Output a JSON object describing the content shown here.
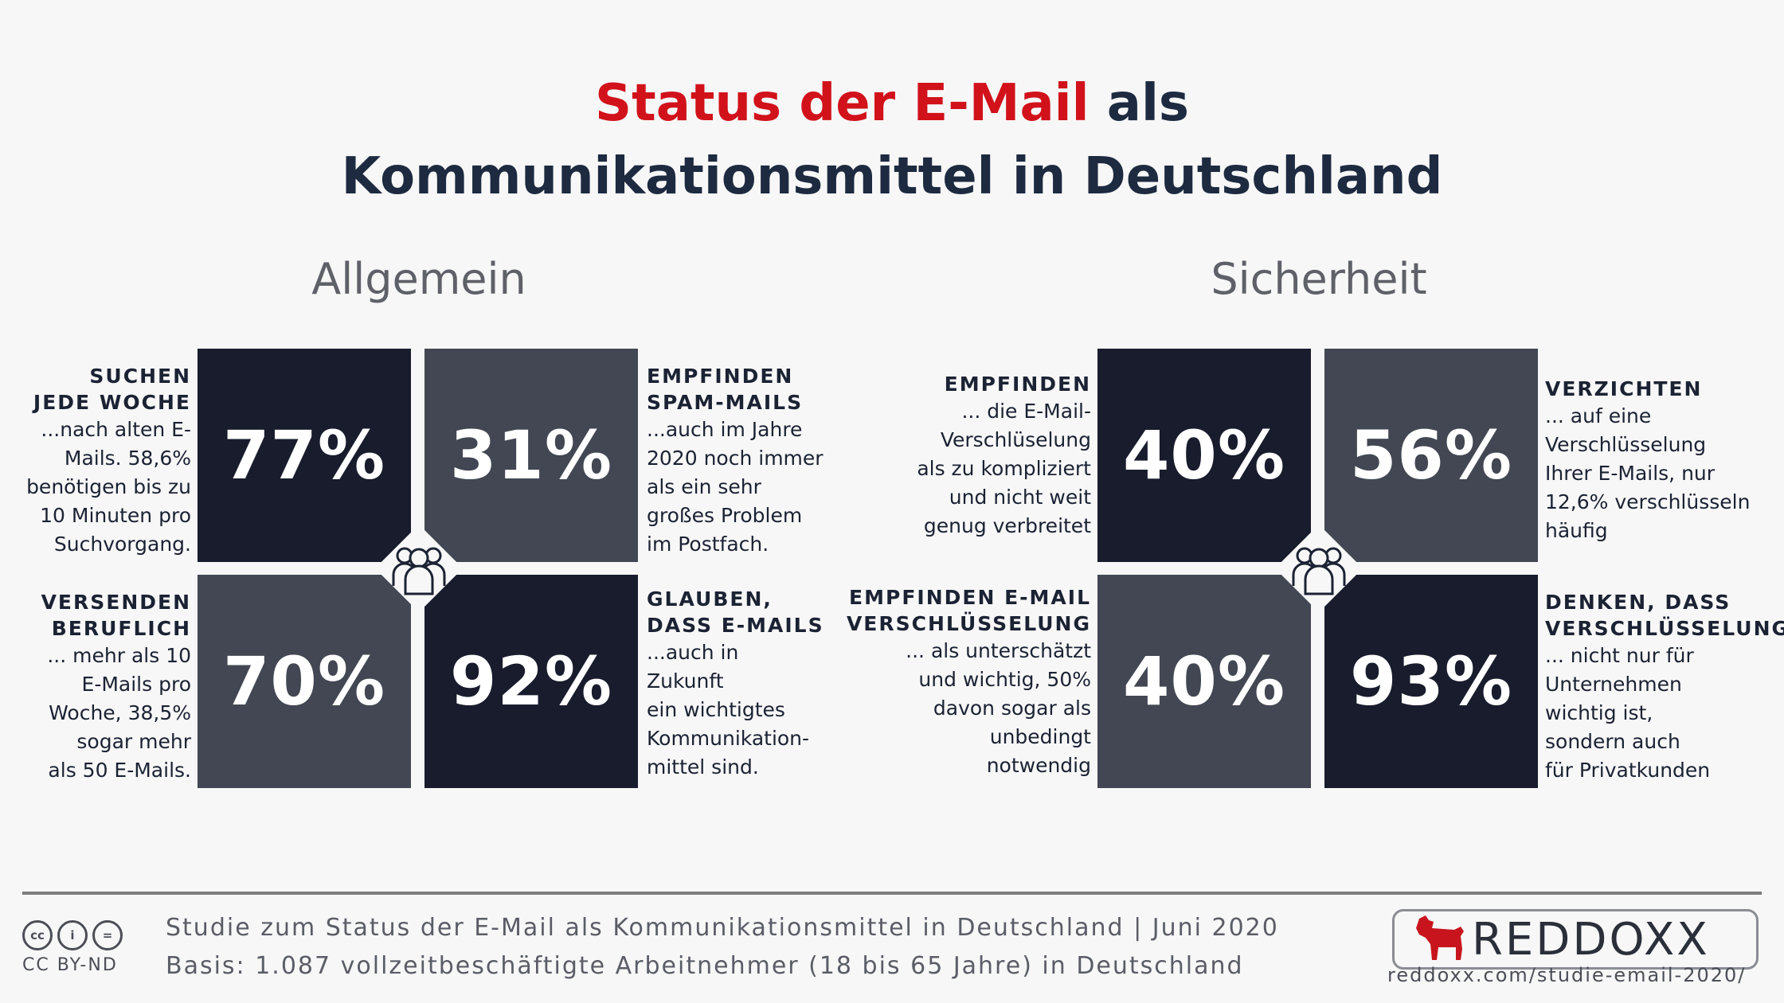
{
  "title": {
    "red_part": "Status der E-Mail",
    "dark_part": " als",
    "line2": "Kommunikationsmittel in Deutschland"
  },
  "sections": {
    "general": {
      "title": "Allgemein",
      "items": [
        {
          "value": "77%",
          "head": "SUCHEN\nJEDE WOCHE",
          "body": "...nach alten E-\nMails. 58,6%\nbenötigen bis zu\n10 Minuten pro\nSuchvorgang."
        },
        {
          "value": "31%",
          "head": "EMPFINDEN\nSPAM-MAILS",
          "body": "...auch im Jahre\n2020 noch immer\nals ein sehr\ngroßes Problem\nim Postfach."
        },
        {
          "value": "70%",
          "head": "VERSENDEN\nBERUFLICH",
          "body": "... mehr als 10\nE-Mails pro\nWoche, 38,5%\nsogar mehr\nals 50 E-Mails."
        },
        {
          "value": "92%",
          "head": "GLAUBEN,\nDASS E-MAILS",
          "body": "...auch in\nZukunft\nein wichtigtes\nKommunikation-\nmittel sind."
        }
      ]
    },
    "security": {
      "title": "Sicherheit",
      "items": [
        {
          "value": "40%",
          "head": "EMPFINDEN",
          "body": "... die E-Mail-\nVerschlüselung\nals zu kompliziert\nund nicht weit\ngenug verbreitet"
        },
        {
          "value": "56%",
          "head": "VERZICHTEN",
          "body": "... auf eine\nVerschlüsselung\nIhrer E-Mails, nur\n12,6% verschlüsseln\nhäufig"
        },
        {
          "value": "40%",
          "head": "EMPFINDEN E-MAIL\nVERSCHLÜSSELUNG",
          "body": "... als unterschätzt\nund wichtig, 50%\ndavon sogar als\nunbedingt\nnotwendig"
        },
        {
          "value": "93%",
          "head": "DENKEN, DASS\nVERSCHLÜSSELUNG",
          "body": "... nicht nur für\nUnternehmen\nwichtig ist,\nsondern auch\nfür Privatkunden"
        }
      ]
    }
  },
  "footer": {
    "line1": "Studie zum Status der E-Mail als Kommunikationsmittel in Deutschland | Juni 2020",
    "line2": "Basis: 1.087 vollzeitbeschäftigte Arbeitnehmer (18 bis 65 Jahre) in Deutschland",
    "license": "CC BY-ND",
    "license_icons": [
      "cc",
      "i",
      "="
    ],
    "brand": "REDDOXX",
    "url": "reddoxx.com/studie-email-2020/"
  },
  "colors": {
    "accent_red": "#d1121b",
    "dark_tile": "#181c2d",
    "grey_tile": "#424753",
    "title": "#1d2a40"
  },
  "icons": {
    "center": "people-group-icon",
    "logo": "dog-icon"
  }
}
